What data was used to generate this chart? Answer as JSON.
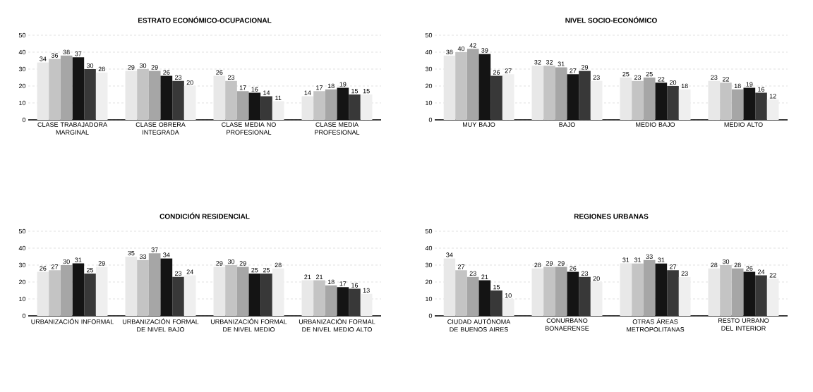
{
  "chart_data": [
    {
      "type": "bar",
      "title": "ESTRATO ECONÓMICO-OCUPACIONAL",
      "categories": [
        "CLASE TRABAJADORA MARGINAL",
        "CLASE OBRERA INTEGRADA",
        "CLASE MEDIA NO PROFESIONAL",
        "CLASE MEDIA PROFESIONAL"
      ],
      "series": [
        {
          "color": "#e8e8e8",
          "values": [
            34,
            29,
            26,
            14
          ]
        },
        {
          "color": "#c4c4c4",
          "values": [
            36,
            30,
            23,
            17
          ]
        },
        {
          "color": "#a6a6a6",
          "values": [
            38,
            29,
            17,
            18
          ]
        },
        {
          "color": "#141414",
          "values": [
            37,
            26,
            16,
            19
          ]
        },
        {
          "color": "#383838",
          "values": [
            30,
            23,
            14,
            15
          ]
        },
        {
          "color": "#efefef",
          "values": [
            28,
            20,
            11,
            15
          ]
        }
      ],
      "ylim": [
        0,
        50
      ],
      "yticks": [
        0,
        10,
        20,
        30,
        40,
        50
      ],
      "grid": "y",
      "data_labels": true
    },
    {
      "type": "bar",
      "title": "NIVEL SOCIO-ECONÓMICO",
      "categories": [
        "MUY BAJO",
        "BAJO",
        "MEDIO BAJO",
        "MEDIO ALTO"
      ],
      "series": [
        {
          "color": "#e8e8e8",
          "values": [
            38,
            32,
            25,
            23
          ]
        },
        {
          "color": "#c4c4c4",
          "values": [
            40,
            32,
            23,
            22
          ]
        },
        {
          "color": "#a6a6a6",
          "values": [
            42,
            31,
            25,
            18
          ]
        },
        {
          "color": "#141414",
          "values": [
            39,
            27,
            22,
            19
          ]
        },
        {
          "color": "#383838",
          "values": [
            26,
            29,
            20,
            16
          ]
        },
        {
          "color": "#efefef",
          "values": [
            27,
            23,
            18,
            12
          ]
        }
      ],
      "ylim": [
        0,
        50
      ],
      "yticks": [
        0,
        10,
        20,
        30,
        40,
        50
      ],
      "grid": "y",
      "data_labels": true
    },
    {
      "type": "bar",
      "title": "CONDICIÓN RESIDENCIAL",
      "categories": [
        "URBANIZACIÓN INFORMAL",
        "URBANIZACIÓN FORMAL DE NIVEL BAJO",
        "URBANIZACIÓN FORMAL DE NIVEL MEDIO",
        "URBANIZACIÓN FORMAL DE NIVEL MEDIO ALTO"
      ],
      "series": [
        {
          "color": "#e8e8e8",
          "values": [
            26,
            35,
            29,
            21
          ]
        },
        {
          "color": "#c4c4c4",
          "values": [
            27,
            33,
            30,
            21
          ]
        },
        {
          "color": "#a6a6a6",
          "values": [
            30,
            37,
            29,
            18
          ]
        },
        {
          "color": "#141414",
          "values": [
            31,
            34,
            25,
            17
          ]
        },
        {
          "color": "#383838",
          "values": [
            25,
            23,
            25,
            16
          ]
        },
        {
          "color": "#efefef",
          "values": [
            29,
            24,
            28,
            13
          ]
        }
      ],
      "ylim": [
        0,
        50
      ],
      "yticks": [
        0,
        10,
        20,
        30,
        40,
        50
      ],
      "grid": "y",
      "data_labels": true
    },
    {
      "type": "bar",
      "title": "REGIONES URBANAS",
      "categories": [
        "CIUDAD AUTÓNOMA DE BUENOS AIRES",
        "CONURBANO BONAERENSE",
        "OTRAS ÁREAS METROPOLITANAS",
        "RESTO URBANO DEL INTERIOR"
      ],
      "series": [
        {
          "color": "#e8e8e8",
          "values": [
            34,
            28,
            31,
            28
          ]
        },
        {
          "color": "#c4c4c4",
          "values": [
            27,
            29,
            31,
            30
          ]
        },
        {
          "color": "#a6a6a6",
          "values": [
            23,
            29,
            33,
            28
          ]
        },
        {
          "color": "#141414",
          "values": [
            21,
            26,
            31,
            26
          ]
        },
        {
          "color": "#383838",
          "values": [
            15,
            23,
            27,
            24
          ]
        },
        {
          "color": "#efefef",
          "values": [
            10,
            20,
            23,
            22
          ]
        }
      ],
      "ylim": [
        0,
        50
      ],
      "yticks": [
        0,
        10,
        20,
        30,
        40,
        50
      ],
      "grid": "y",
      "data_labels": true
    }
  ]
}
